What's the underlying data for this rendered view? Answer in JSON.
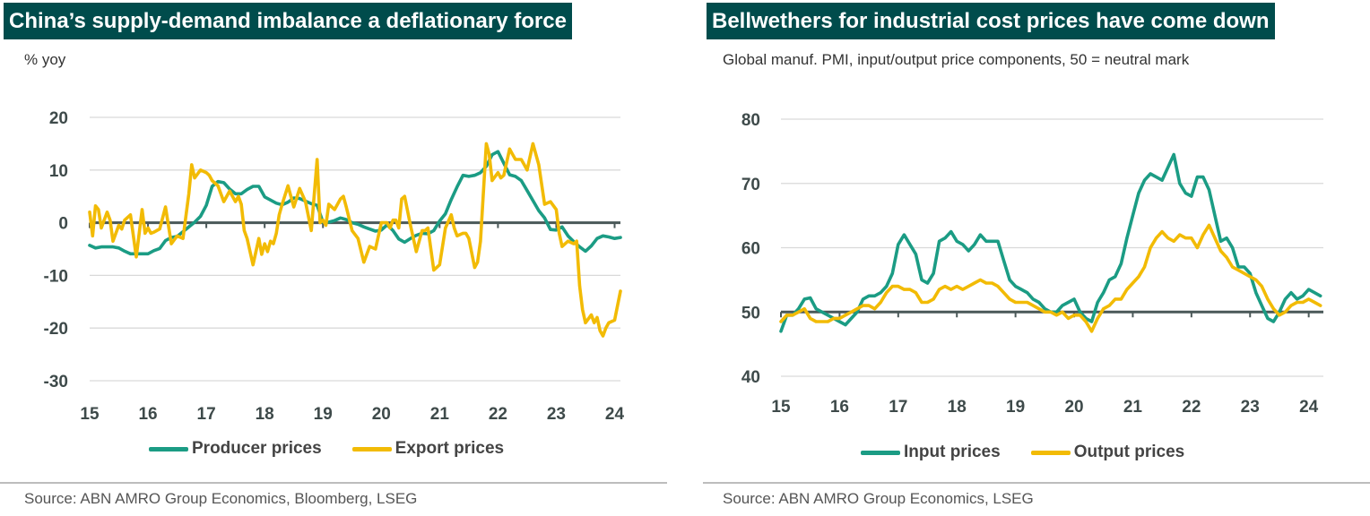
{
  "left": {
    "title": "China’s supply-demand imbalance a deflationary force",
    "subtitle": "% yoy",
    "source": "Source: ABN AMRO Group Economics, Bloomberg, LSEG",
    "chart_data": {
      "type": "line",
      "ylim": [
        -30,
        20
      ],
      "yticks": [
        20,
        10,
        0,
        -10,
        -20,
        -30
      ],
      "xlim": [
        15,
        24.1
      ],
      "xticks": [
        15,
        16,
        17,
        18,
        19,
        20,
        21,
        22,
        23,
        24
      ],
      "xtick_labels": [
        "15",
        "16",
        "17",
        "18",
        "19",
        "20",
        "21",
        "22",
        "23",
        "24"
      ],
      "ytick_labels": [
        "20",
        "10",
        "0",
        "-10",
        "-20",
        "-30"
      ],
      "grid": true,
      "legend": "bottom",
      "series": [
        {
          "name": "Producer prices",
          "color": "#1b9c84",
          "x": [
            15.0,
            15.1,
            15.2,
            15.3,
            15.4,
            15.5,
            15.6,
            15.7,
            15.8,
            15.9,
            16.0,
            16.1,
            16.2,
            16.3,
            16.4,
            16.5,
            16.6,
            16.7,
            16.8,
            16.9,
            17.0,
            17.1,
            17.2,
            17.3,
            17.4,
            17.5,
            17.6,
            17.7,
            17.8,
            17.9,
            18.0,
            18.1,
            18.2,
            18.3,
            18.4,
            18.5,
            18.6,
            18.7,
            18.8,
            18.9,
            19.0,
            19.1,
            19.2,
            19.3,
            19.4,
            19.5,
            19.6,
            19.7,
            19.8,
            19.9,
            20.0,
            20.1,
            20.2,
            20.3,
            20.4,
            20.5,
            20.6,
            20.7,
            20.8,
            20.9,
            21.0,
            21.1,
            21.2,
            21.3,
            21.4,
            21.5,
            21.6,
            21.7,
            21.8,
            21.9,
            22.0,
            22.1,
            22.2,
            22.3,
            22.4,
            22.5,
            22.6,
            22.7,
            22.8,
            22.9,
            23.0,
            23.1,
            23.2,
            23.3,
            23.4,
            23.5,
            23.6,
            23.7,
            23.8,
            23.9,
            24.0,
            24.1
          ],
          "y": [
            -4.3,
            -4.8,
            -4.6,
            -4.6,
            -4.6,
            -4.8,
            -5.4,
            -5.9,
            -5.9,
            -5.9,
            -5.9,
            -5.3,
            -4.9,
            -3.4,
            -2.8,
            -2.6,
            -1.7,
            -0.8,
            0.1,
            1.2,
            3.3,
            6.9,
            7.8,
            7.6,
            6.4,
            5.5,
            5.5,
            6.3,
            6.9,
            6.9,
            4.9,
            4.3,
            3.7,
            3.4,
            3.9,
            4.7,
            4.6,
            4.1,
            3.6,
            3.3,
            0.1,
            0.1,
            0.4,
            0.9,
            0.6,
            0.0,
            -0.3,
            -0.8,
            -1.2,
            -1.6,
            -1.4,
            -0.4,
            -1.5,
            -3.1,
            -3.7,
            -3.0,
            -2.4,
            -2.0,
            -2.1,
            -1.5,
            0.3,
            1.7,
            4.4,
            6.8,
            9.0,
            8.8,
            9.0,
            9.5,
            10.7,
            12.9,
            13.5,
            11.3,
            9.1,
            8.8,
            8.0,
            6.1,
            4.2,
            2.3,
            0.9,
            -1.3,
            -1.4,
            -0.8,
            -2.5,
            -3.6,
            -4.6,
            -5.4,
            -4.4,
            -3.0,
            -2.5,
            -2.7,
            -3.0,
            -2.8
          ]
        },
        {
          "name": "Export prices",
          "color": "#f2bb05",
          "x": [
            15.0,
            15.05,
            15.1,
            15.15,
            15.2,
            15.3,
            15.35,
            15.4,
            15.5,
            15.55,
            15.6,
            15.7,
            15.8,
            15.9,
            15.95,
            16.0,
            16.05,
            16.1,
            16.15,
            16.2,
            16.3,
            16.4,
            16.5,
            16.6,
            16.7,
            16.75,
            16.8,
            16.9,
            17.0,
            17.05,
            17.1,
            17.2,
            17.3,
            17.4,
            17.5,
            17.55,
            17.6,
            17.65,
            17.7,
            17.8,
            17.9,
            17.95,
            18.0,
            18.05,
            18.1,
            18.15,
            18.2,
            18.25,
            18.3,
            18.4,
            18.5,
            18.6,
            18.7,
            18.8,
            18.9,
            18.95,
            19.0,
            19.05,
            19.1,
            19.15,
            19.2,
            19.3,
            19.35,
            19.4,
            19.5,
            19.6,
            19.7,
            19.8,
            19.9,
            20.0,
            20.1,
            20.15,
            20.2,
            20.25,
            20.3,
            20.35,
            20.4,
            20.5,
            20.6,
            20.7,
            20.75,
            20.8,
            20.9,
            21.0,
            21.1,
            21.2,
            21.25,
            21.3,
            21.4,
            21.45,
            21.5,
            21.6,
            21.65,
            21.7,
            21.8,
            21.85,
            21.9,
            22.0,
            22.05,
            22.1,
            22.2,
            22.25,
            22.3,
            22.4,
            22.45,
            22.5,
            22.6,
            22.7,
            22.8,
            22.9,
            23.0,
            23.05,
            23.1,
            23.2,
            23.3,
            23.35,
            23.4,
            23.45,
            23.5,
            23.6,
            23.65,
            23.7,
            23.75,
            23.8,
            23.85,
            23.9,
            24.0,
            24.1
          ],
          "y": [
            2.0,
            -2.5,
            3.2,
            2.5,
            -1.0,
            2.0,
            0.5,
            -3.5,
            -0.5,
            -1.2,
            0.5,
            1.5,
            -6.5,
            2.5,
            -2.0,
            -1.0,
            -2.0,
            -1.8,
            -1.5,
            -1.2,
            3.0,
            -4.0,
            -2.5,
            -3.0,
            5.5,
            11.0,
            8.5,
            10.0,
            9.5,
            9.0,
            8.0,
            7.0,
            4.0,
            6.0,
            4.0,
            5.0,
            3.5,
            -1.5,
            -3.0,
            -8.0,
            -3.0,
            -6.0,
            -4.0,
            -5.5,
            -3.5,
            -4.0,
            -2.0,
            1.5,
            3.5,
            7.0,
            3.0,
            6.5,
            4.0,
            -1.5,
            12.0,
            0.0,
            0.5,
            -0.5,
            3.5,
            3.0,
            2.5,
            4.5,
            5.0,
            3.0,
            -1.5,
            -3.0,
            -7.5,
            -4.5,
            -5.0,
            0.0,
            0.0,
            -1.0,
            0.5,
            0.5,
            -1.0,
            4.5,
            5.0,
            -0.5,
            -5.5,
            -1.5,
            -1.5,
            -1.0,
            -9.0,
            -8.0,
            -1.0,
            1.5,
            -1.0,
            -2.5,
            -2.0,
            -2.0,
            -3.0,
            -8.5,
            -7.5,
            -3.5,
            15.0,
            13.0,
            8.0,
            9.5,
            8.5,
            9.0,
            14.0,
            13.0,
            12.0,
            12.0,
            11.0,
            10.0,
            15.0,
            11.0,
            3.5,
            4.0,
            2.5,
            -2.0,
            -4.5,
            -3.5,
            -4.0,
            -3.5,
            -12.0,
            -16.5,
            -19.0,
            -17.5,
            -19.0,
            -18.0,
            -20.5,
            -21.5,
            -20.0,
            -19.0,
            -18.5,
            -13.0
          ]
        }
      ]
    }
  },
  "right": {
    "title": "Bellwethers for industrial cost prices have come down",
    "subtitle": "Global manuf. PMI, input/output price components, 50 = neutral mark",
    "source": "Source: ABN AMRO Group Economics, LSEG",
    "chart_data": {
      "type": "line",
      "ylim": [
        40,
        80
      ],
      "yticks": [
        80,
        70,
        60,
        50,
        40
      ],
      "xlim": [
        15,
        24.25
      ],
      "xticks": [
        15,
        16,
        17,
        18,
        19,
        20,
        21,
        22,
        23,
        24
      ],
      "xtick_labels": [
        "15",
        "16",
        "17",
        "18",
        "19",
        "20",
        "21",
        "22",
        "23",
        "24"
      ],
      "ytick_labels": [
        "80",
        "70",
        "60",
        "50",
        "40"
      ],
      "grid": true,
      "legend": "bottom",
      "series": [
        {
          "name": "Input prices",
          "color": "#1b9c84",
          "x": [
            15.0,
            15.1,
            15.2,
            15.3,
            15.4,
            15.5,
            15.6,
            15.7,
            15.8,
            15.9,
            16.0,
            16.1,
            16.2,
            16.3,
            16.4,
            16.5,
            16.6,
            16.7,
            16.8,
            16.9,
            17.0,
            17.1,
            17.2,
            17.3,
            17.4,
            17.5,
            17.6,
            17.7,
            17.8,
            17.9,
            18.0,
            18.1,
            18.2,
            18.3,
            18.4,
            18.5,
            18.6,
            18.7,
            18.8,
            18.9,
            19.0,
            19.1,
            19.2,
            19.3,
            19.4,
            19.5,
            19.6,
            19.7,
            19.8,
            19.9,
            20.0,
            20.1,
            20.2,
            20.3,
            20.4,
            20.5,
            20.6,
            20.7,
            20.8,
            20.9,
            21.0,
            21.1,
            21.2,
            21.3,
            21.4,
            21.5,
            21.6,
            21.7,
            21.8,
            21.9,
            22.0,
            22.1,
            22.2,
            22.3,
            22.4,
            22.5,
            22.6,
            22.7,
            22.8,
            22.9,
            23.0,
            23.1,
            23.2,
            23.3,
            23.4,
            23.5,
            23.6,
            23.7,
            23.8,
            23.9,
            24.0,
            24.1,
            24.2
          ],
          "y": [
            47.0,
            49.5,
            49.5,
            50.5,
            52.0,
            52.2,
            50.5,
            50.0,
            49.5,
            49.0,
            48.5,
            48.0,
            49.0,
            50.0,
            52.0,
            52.5,
            52.5,
            53.0,
            54.0,
            56.0,
            60.5,
            62.0,
            60.5,
            59.0,
            55.0,
            54.5,
            56.0,
            61.0,
            61.5,
            62.5,
            61.0,
            60.5,
            59.5,
            60.5,
            62.0,
            61.0,
            61.0,
            61.0,
            58.0,
            55.0,
            54.0,
            53.5,
            53.0,
            52.0,
            51.5,
            50.5,
            50.0,
            50.0,
            51.0,
            51.5,
            52.0,
            50.0,
            49.0,
            48.5,
            51.5,
            53.0,
            55.0,
            55.5,
            57.5,
            61.5,
            65.0,
            68.5,
            70.5,
            71.5,
            71.0,
            70.5,
            72.5,
            74.5,
            70.0,
            68.5,
            68.0,
            71.0,
            71.0,
            69.0,
            65.0,
            61.0,
            61.5,
            60.0,
            57.0,
            57.0,
            56.0,
            53.0,
            51.0,
            49.0,
            48.5,
            50.0,
            52.0,
            53.0,
            52.0,
            52.5,
            53.5,
            53.0,
            52.5
          ]
        },
        {
          "name": "Output prices",
          "color": "#f2bb05",
          "x": [
            15.0,
            15.1,
            15.2,
            15.3,
            15.4,
            15.5,
            15.6,
            15.7,
            15.8,
            15.9,
            16.0,
            16.1,
            16.2,
            16.3,
            16.4,
            16.5,
            16.6,
            16.7,
            16.8,
            16.9,
            17.0,
            17.1,
            17.2,
            17.3,
            17.4,
            17.5,
            17.6,
            17.7,
            17.8,
            17.9,
            18.0,
            18.1,
            18.2,
            18.3,
            18.4,
            18.5,
            18.6,
            18.7,
            18.8,
            18.9,
            19.0,
            19.1,
            19.2,
            19.3,
            19.4,
            19.5,
            19.6,
            19.7,
            19.8,
            19.9,
            20.0,
            20.1,
            20.2,
            20.3,
            20.4,
            20.5,
            20.6,
            20.7,
            20.8,
            20.9,
            21.0,
            21.1,
            21.2,
            21.3,
            21.4,
            21.5,
            21.6,
            21.7,
            21.8,
            21.9,
            22.0,
            22.1,
            22.2,
            22.3,
            22.4,
            22.5,
            22.6,
            22.7,
            22.8,
            22.9,
            23.0,
            23.1,
            23.2,
            23.3,
            23.4,
            23.5,
            23.6,
            23.7,
            23.8,
            23.9,
            24.0,
            24.1,
            24.2
          ],
          "y": [
            48.5,
            49.5,
            49.5,
            50.0,
            50.5,
            49.0,
            48.5,
            48.5,
            48.5,
            49.0,
            49.0,
            49.5,
            50.0,
            50.5,
            51.0,
            51.0,
            50.5,
            51.5,
            53.0,
            54.0,
            54.0,
            53.5,
            53.5,
            53.0,
            51.5,
            51.5,
            52.0,
            53.5,
            54.0,
            53.5,
            54.0,
            53.5,
            54.0,
            54.5,
            55.0,
            54.5,
            54.5,
            54.0,
            53.0,
            52.0,
            51.5,
            51.5,
            51.5,
            51.0,
            50.5,
            50.0,
            50.0,
            49.5,
            50.0,
            49.0,
            49.5,
            49.5,
            48.5,
            47.0,
            49.0,
            50.5,
            51.0,
            52.0,
            52.0,
            53.5,
            54.5,
            55.5,
            57.0,
            60.0,
            61.5,
            62.5,
            61.5,
            61.0,
            62.0,
            61.5,
            61.5,
            60.0,
            62.0,
            63.5,
            61.5,
            59.5,
            58.5,
            57.0,
            56.5,
            56.0,
            55.5,
            55.0,
            54.0,
            52.0,
            50.5,
            49.5,
            50.0,
            51.0,
            51.5,
            51.5,
            52.0,
            51.5,
            51.0
          ]
        }
      ]
    }
  }
}
